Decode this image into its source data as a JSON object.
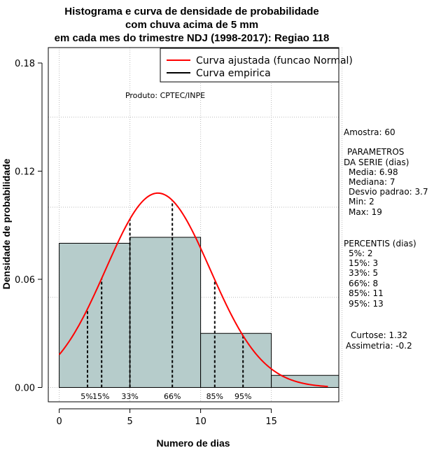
{
  "chart_data": {
    "type": "histogram",
    "title": [
      "Histograma e curva de densidade de probabilidade",
      "com chuva acima de 5 mm",
      "em cada mes do trimestre NDJ (1998-2017): Regiao 118"
    ],
    "xlabel": "Numero de dias",
    "ylabel": "Densidade de probabilidade",
    "xlim": [
      0,
      20
    ],
    "ylim": [
      0,
      0.18
    ],
    "xticks": [
      0,
      5,
      10,
      15
    ],
    "yticks": [
      0.0,
      0.06,
      0.12,
      0.18
    ],
    "xtick_labels": [
      "0",
      "5",
      "10",
      "15"
    ],
    "ytick_labels": [
      "0.00",
      "0.06",
      "0.12",
      "0.18"
    ],
    "bins": [
      {
        "from": 0,
        "to": 5,
        "density": 0.08
      },
      {
        "from": 5,
        "to": 10,
        "density": 0.0833
      },
      {
        "from": 10,
        "to": 15,
        "density": 0.03
      },
      {
        "from": 15,
        "to": 20,
        "density": 0.0067
      }
    ],
    "normal_fit": {
      "mean": 6.98,
      "sd": 3.7,
      "x_from": 0,
      "x_to": 19,
      "color": "#ff0000"
    },
    "percentile_lines": [
      {
        "label": "5%",
        "x": 2
      },
      {
        "label": "15%",
        "x": 3
      },
      {
        "label": "33%",
        "x": 5
      },
      {
        "label": "66%",
        "x": 8
      },
      {
        "label": "85%",
        "x": 11
      },
      {
        "label": "95%",
        "x": 13
      }
    ],
    "legend": {
      "position": "top-right",
      "entries": [
        {
          "label": "Curva ajustada (funcao Normal)",
          "color": "#ff0000"
        },
        {
          "label": "Curva empirica",
          "color": "#000000"
        }
      ]
    },
    "annotation": "Produto: CPTEC/INPE",
    "grid": true,
    "bar_color": "#b6cccb"
  },
  "side_panel": {
    "sample": "Amostra: 60",
    "params_title_1": "PARAMETROS",
    "params_title_2": "DA SERIE (dias)",
    "params": [
      "Media: 6.98",
      "Mediana: 7",
      "Desvio padrao: 3.7",
      "Min: 2",
      "Max: 19"
    ],
    "percentis_title": "PERCENTIS (dias)",
    "percentis": [
      "5%: 2",
      "15%: 3",
      "33%: 5",
      "66%: 8",
      "85%: 11",
      "95%: 13"
    ],
    "curtose": "Curtose: 1.32",
    "assimetria": "Assimetria: -0.2"
  }
}
